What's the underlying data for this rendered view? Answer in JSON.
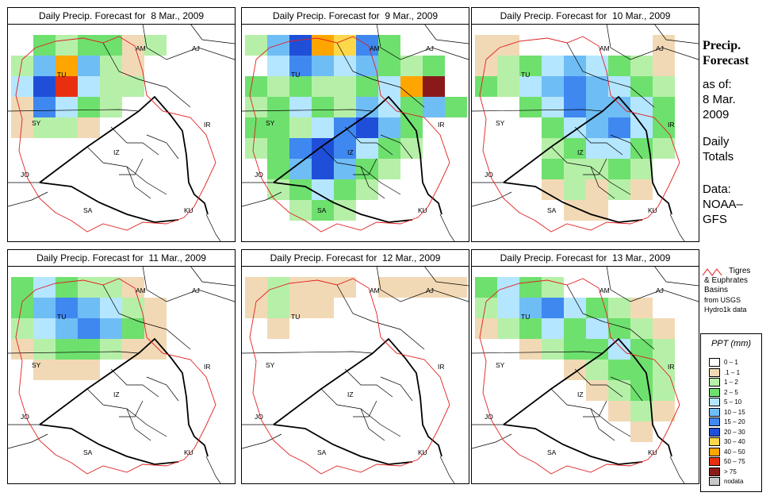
{
  "panel_titles": [
    "Daily Precip. Forecast for  8 Mar., 2009",
    "Daily Precip. Forecast for  9 Mar., 2009",
    "Daily Precip. Forecast for  10 Mar., 2009",
    "Daily Precip. Forecast for  11 Mar., 2009",
    "Daily Precip. Forecast for  12 Mar., 2009",
    "Daily Precip. Forecast for  13 Mar., 2009"
  ],
  "map_labels": {
    "AM": "AM",
    "AJ": "AJ",
    "TU": "TU",
    "SY": "SY",
    "IR": "IR",
    "JO": "JO",
    "SA": "SA",
    "KU": "KU",
    "IZ": "IZ"
  },
  "sidebar": {
    "title_line1": "Precip.",
    "title_line2": "Forecast",
    "asof_line1": "as of:",
    "asof_line2": "8 Mar.",
    "asof_line3": "2009",
    "daily_line1": "Daily",
    "daily_line2": "Totals",
    "data_line1": "Data:",
    "data_line2": "NOAA–",
    "data_line3": "GFS"
  },
  "basin_key": {
    "line1": "Tigres",
    "line2": "& Euphrates",
    "line3": "Basins",
    "line4": "from USGS",
    "line5": "Hydro1k data",
    "line_color": "#e02020"
  },
  "legend": {
    "title": "PPT (mm)",
    "entries": [
      {
        "label": "0 – 1",
        "color": "#ffffff"
      },
      {
        "label": ".1 – 1",
        "color": "#f2d9b5"
      },
      {
        "label": "1 – 2",
        "color": "#b6f0a8"
      },
      {
        "label": "2 – 5",
        "color": "#6ee06e"
      },
      {
        "label": "5 – 10",
        "color": "#b4e6ff"
      },
      {
        "label": "10 – 15",
        "color": "#6fbdf5"
      },
      {
        "label": "15 – 20",
        "color": "#3f88f0"
      },
      {
        "label": "20 – 30",
        "color": "#1f4fd8"
      },
      {
        "label": "30 – 40",
        "color": "#ffd84a"
      },
      {
        "label": "40 – 50",
        "color": "#ffa500"
      },
      {
        "label": "50 – 75",
        "color": "#e83010"
      },
      {
        "label": "> 75",
        "color": "#8a1a1a"
      },
      {
        "label": "nodata",
        "color": "#c8c8c8"
      }
    ]
  },
  "precip_patterns": [
    [
      [
        0,
        2,
        2
      ],
      [
        0,
        1,
        2
      ],
      [
        0,
        2,
        4
      ],
      [
        1,
        0,
        3
      ],
      [
        1,
        1,
        5
      ],
      [
        1,
        2,
        7
      ],
      [
        2,
        1,
        9
      ],
      [
        2,
        2,
        10
      ],
      [
        1,
        3,
        6
      ],
      [
        2,
        3,
        4
      ],
      [
        2,
        0,
        2
      ],
      [
        3,
        0,
        3
      ],
      [
        3,
        1,
        5
      ],
      [
        3,
        2,
        4
      ],
      [
        3,
        3,
        3
      ],
      [
        4,
        1,
        2
      ],
      [
        4,
        2,
        2
      ],
      [
        4,
        3,
        2
      ],
      [
        5,
        0,
        1
      ],
      [
        5,
        1,
        1
      ],
      [
        0,
        3,
        1
      ],
      [
        2,
        4,
        2
      ],
      [
        3,
        4,
        1
      ],
      [
        1,
        4,
        2
      ],
      [
        4,
        0,
        3
      ],
      [
        5,
        2,
        2
      ],
      [
        6,
        0,
        2
      ],
      [
        0,
        4,
        1
      ]
    ],
    [
      [
        0,
        0,
        2
      ],
      [
        1,
        0,
        5
      ],
      [
        2,
        0,
        7
      ],
      [
        3,
        0,
        9
      ],
      [
        4,
        0,
        8
      ],
      [
        5,
        0,
        6
      ],
      [
        6,
        0,
        3
      ],
      [
        1,
        1,
        4
      ],
      [
        2,
        1,
        6
      ],
      [
        3,
        1,
        5
      ],
      [
        4,
        1,
        4
      ],
      [
        5,
        1,
        5
      ],
      [
        6,
        1,
        3
      ],
      [
        7,
        1,
        2
      ],
      [
        8,
        1,
        3
      ],
      [
        8,
        2,
        11
      ],
      [
        7,
        2,
        9
      ],
      [
        6,
        2,
        4
      ],
      [
        5,
        2,
        3
      ],
      [
        4,
        2,
        2
      ],
      [
        3,
        2,
        2
      ],
      [
        2,
        2,
        3
      ],
      [
        1,
        2,
        2
      ],
      [
        0,
        2,
        3
      ],
      [
        0,
        3,
        2
      ],
      [
        1,
        3,
        3
      ],
      [
        2,
        3,
        4
      ],
      [
        3,
        3,
        3
      ],
      [
        4,
        3,
        2
      ],
      [
        5,
        3,
        5
      ],
      [
        6,
        3,
        4
      ],
      [
        7,
        3,
        3
      ],
      [
        8,
        3,
        5
      ],
      [
        9,
        3,
        3
      ],
      [
        0,
        4,
        3
      ],
      [
        1,
        4,
        3
      ],
      [
        2,
        4,
        2
      ],
      [
        3,
        4,
        4
      ],
      [
        4,
        4,
        6
      ],
      [
        5,
        4,
        7
      ],
      [
        6,
        4,
        5
      ],
      [
        7,
        4,
        3
      ],
      [
        0,
        5,
        2
      ],
      [
        1,
        5,
        3
      ],
      [
        2,
        5,
        6
      ],
      [
        3,
        5,
        7
      ],
      [
        4,
        5,
        6
      ],
      [
        5,
        5,
        4
      ],
      [
        6,
        5,
        3
      ],
      [
        7,
        5,
        2
      ],
      [
        1,
        6,
        3
      ],
      [
        2,
        6,
        5
      ],
      [
        3,
        6,
        7
      ],
      [
        4,
        6,
        5
      ],
      [
        5,
        6,
        3
      ],
      [
        6,
        6,
        2
      ],
      [
        1,
        7,
        2
      ],
      [
        2,
        7,
        3
      ],
      [
        3,
        7,
        4
      ],
      [
        4,
        7,
        3
      ],
      [
        5,
        7,
        2
      ],
      [
        2,
        8,
        2
      ],
      [
        3,
        8,
        3
      ],
      [
        4,
        8,
        2
      ]
    ],
    [
      [
        0,
        1,
        1
      ],
      [
        1,
        1,
        2
      ],
      [
        2,
        1,
        3
      ],
      [
        3,
        1,
        4
      ],
      [
        4,
        1,
        5
      ],
      [
        5,
        1,
        4
      ],
      [
        6,
        1,
        3
      ],
      [
        7,
        1,
        2
      ],
      [
        0,
        2,
        3
      ],
      [
        1,
        2,
        2
      ],
      [
        2,
        2,
        4
      ],
      [
        3,
        2,
        5
      ],
      [
        4,
        2,
        6
      ],
      [
        5,
        2,
        5
      ],
      [
        6,
        2,
        4
      ],
      [
        7,
        2,
        3
      ],
      [
        8,
        2,
        2
      ],
      [
        2,
        3,
        3
      ],
      [
        3,
        3,
        4
      ],
      [
        4,
        3,
        6
      ],
      [
        5,
        3,
        5
      ],
      [
        6,
        3,
        5
      ],
      [
        7,
        3,
        4
      ],
      [
        8,
        3,
        3
      ],
      [
        3,
        4,
        3
      ],
      [
        4,
        4,
        4
      ],
      [
        5,
        4,
        5
      ],
      [
        6,
        4,
        6
      ],
      [
        7,
        4,
        4
      ],
      [
        8,
        4,
        3
      ],
      [
        3,
        5,
        2
      ],
      [
        4,
        5,
        3
      ],
      [
        5,
        5,
        4
      ],
      [
        6,
        5,
        4
      ],
      [
        7,
        5,
        3
      ],
      [
        8,
        5,
        2
      ],
      [
        3,
        6,
        3
      ],
      [
        4,
        6,
        2
      ],
      [
        5,
        6,
        2
      ],
      [
        6,
        6,
        3
      ],
      [
        7,
        6,
        2
      ],
      [
        3,
        7,
        1
      ],
      [
        4,
        7,
        2
      ],
      [
        5,
        7,
        1
      ],
      [
        6,
        7,
        2
      ],
      [
        7,
        7,
        1
      ],
      [
        4,
        8,
        1
      ],
      [
        5,
        8,
        1
      ],
      [
        0,
        0,
        1
      ],
      [
        1,
        0,
        1
      ],
      [
        8,
        1,
        1
      ],
      [
        8,
        0,
        1
      ]
    ],
    [
      [
        0,
        0,
        3
      ],
      [
        1,
        0,
        4
      ],
      [
        2,
        0,
        3
      ],
      [
        3,
        0,
        2
      ],
      [
        4,
        0,
        2
      ],
      [
        5,
        0,
        1
      ],
      [
        0,
        1,
        3
      ],
      [
        1,
        1,
        5
      ],
      [
        2,
        1,
        6
      ],
      [
        3,
        1,
        5
      ],
      [
        4,
        1,
        4
      ],
      [
        5,
        1,
        2
      ],
      [
        6,
        1,
        1
      ],
      [
        0,
        2,
        2
      ],
      [
        1,
        2,
        4
      ],
      [
        2,
        2,
        5
      ],
      [
        3,
        2,
        6
      ],
      [
        4,
        2,
        5
      ],
      [
        5,
        2,
        3
      ],
      [
        6,
        2,
        1
      ],
      [
        0,
        3,
        1
      ],
      [
        1,
        3,
        2
      ],
      [
        2,
        3,
        3
      ],
      [
        3,
        3,
        3
      ],
      [
        4,
        3,
        2
      ],
      [
        5,
        3,
        1
      ],
      [
        6,
        3,
        1
      ],
      [
        1,
        4,
        1
      ],
      [
        2,
        4,
        1
      ],
      [
        3,
        4,
        1
      ]
    ],
    [
      [
        0,
        0,
        1
      ],
      [
        1,
        0,
        2
      ],
      [
        2,
        0,
        1
      ],
      [
        3,
        0,
        1
      ],
      [
        4,
        0,
        1
      ],
      [
        0,
        1,
        1
      ],
      [
        1,
        1,
        2
      ],
      [
        2,
        1,
        1
      ],
      [
        3,
        1,
        1
      ],
      [
        6,
        0,
        1
      ],
      [
        7,
        0,
        1
      ],
      [
        8,
        0,
        1
      ],
      [
        9,
        0,
        1
      ],
      [
        1,
        2,
        1
      ]
    ],
    [
      [
        0,
        0,
        3
      ],
      [
        1,
        0,
        4
      ],
      [
        2,
        0,
        3
      ],
      [
        3,
        0,
        2
      ],
      [
        0,
        1,
        2
      ],
      [
        1,
        1,
        4
      ],
      [
        2,
        1,
        5
      ],
      [
        3,
        1,
        6
      ],
      [
        4,
        1,
        4
      ],
      [
        5,
        1,
        3
      ],
      [
        6,
        1,
        2
      ],
      [
        7,
        1,
        1
      ],
      [
        0,
        2,
        1
      ],
      [
        1,
        2,
        2
      ],
      [
        2,
        2,
        3
      ],
      [
        3,
        2,
        4
      ],
      [
        4,
        2,
        3
      ],
      [
        5,
        2,
        4
      ],
      [
        6,
        2,
        3
      ],
      [
        7,
        2,
        2
      ],
      [
        8,
        2,
        1
      ],
      [
        2,
        3,
        1
      ],
      [
        3,
        3,
        2
      ],
      [
        4,
        3,
        3
      ],
      [
        5,
        3,
        3
      ],
      [
        6,
        3,
        4
      ],
      [
        7,
        3,
        3
      ],
      [
        8,
        3,
        2
      ],
      [
        4,
        4,
        1
      ],
      [
        5,
        4,
        2
      ],
      [
        6,
        4,
        3
      ],
      [
        7,
        4,
        3
      ],
      [
        8,
        4,
        2
      ],
      [
        5,
        5,
        1
      ],
      [
        6,
        5,
        2
      ],
      [
        7,
        5,
        3
      ],
      [
        8,
        5,
        2
      ],
      [
        6,
        6,
        1
      ],
      [
        7,
        6,
        2
      ],
      [
        8,
        6,
        1
      ],
      [
        7,
        7,
        1
      ]
    ]
  ]
}
